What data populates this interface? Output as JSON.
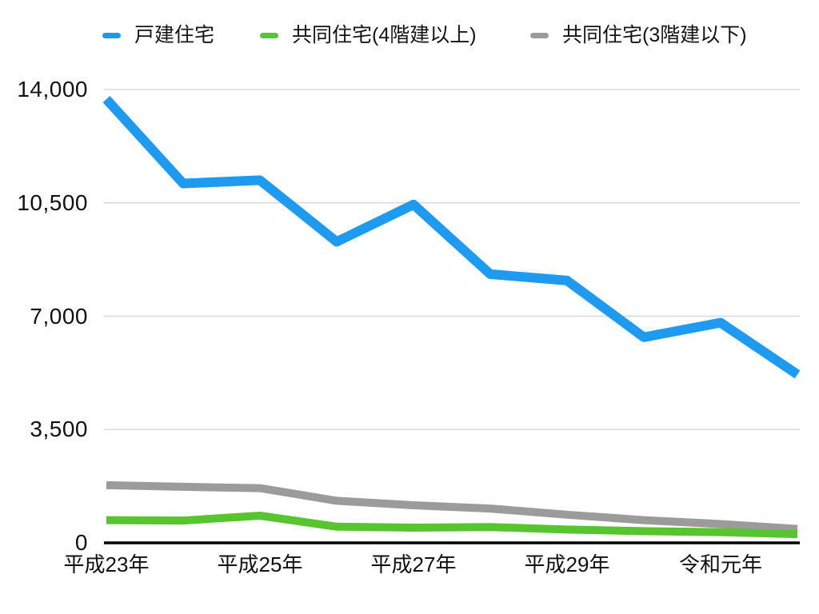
{
  "colors": {
    "background": "#ffffff",
    "blue_series": "#1E9BF0",
    "green_series": "#58C42F",
    "gray_series": "#9B9B9B",
    "gridline": "#D8D8D8",
    "axis": "#000000",
    "text": "#141414"
  },
  "legend": {
    "items": [
      {
        "label": "戸建住宅",
        "color": "#1E9BF0"
      },
      {
        "label": "共同住宅(4階建以上)",
        "color": "#58C42F"
      },
      {
        "label": "共同住宅(3階建以下)",
        "color": "#9B9B9B"
      }
    ]
  },
  "chart_data": {
    "type": "line",
    "title": "",
    "xlabel": "",
    "ylabel": "",
    "categories": [
      "平成23年",
      "",
      "平成25年",
      "",
      "平成27年",
      "",
      "平成29年",
      "",
      "令和元年",
      ""
    ],
    "x_tick_labels": [
      "平成23年",
      "平成25年",
      "平成27年",
      "平成29年",
      "令和元年"
    ],
    "series": [
      {
        "name": "戸建住宅",
        "color": "#1E9BF0",
        "values": [
          13700,
          11100,
          11200,
          9300,
          10450,
          8300,
          8100,
          6350,
          6800,
          5200
        ]
      },
      {
        "name": "共同住宅(4階建以上)",
        "color": "#58C42F",
        "values": [
          700,
          690,
          840,
          500,
          470,
          490,
          410,
          360,
          330,
          270
        ]
      },
      {
        "name": "共同住宅(3階建以下)",
        "color": "#9B9B9B",
        "values": [
          1780,
          1730,
          1690,
          1300,
          1160,
          1060,
          870,
          700,
          580,
          430
        ]
      }
    ],
    "ylim": [
      0,
      14000
    ],
    "y_ticks": [
      0,
      3500,
      7000,
      10500,
      14000
    ],
    "y_tick_labels": [
      "0",
      "3,500",
      "7,000",
      "10,500",
      "14,000"
    ],
    "grid": true,
    "legend_position": "top"
  }
}
